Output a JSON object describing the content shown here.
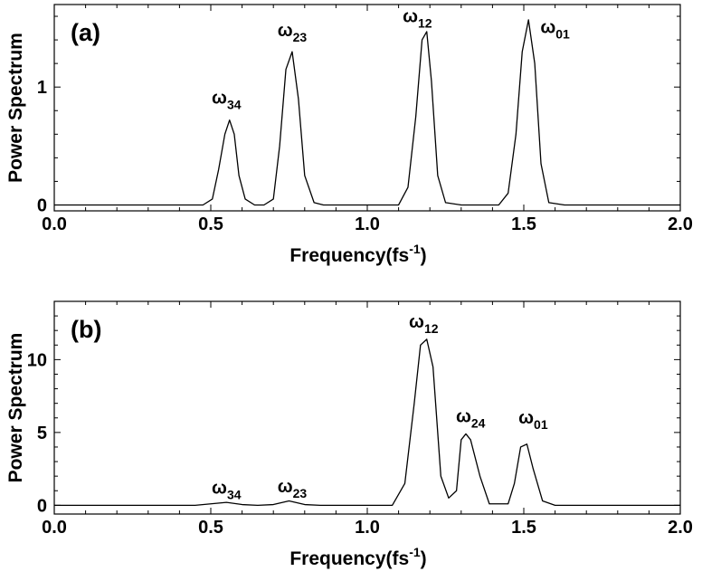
{
  "colors": {
    "line": "#000000",
    "background": "#ffffff"
  },
  "chart_data": [
    {
      "type": "line",
      "panel_label": "(a)",
      "xlabel": "Frequency(fs",
      "xlabel_sup": "-1",
      "xlabel_close": ")",
      "ylabel": "Power Spectrum",
      "xlim": [
        0.0,
        2.0
      ],
      "ylim": [
        -0.05,
        1.7
      ],
      "xticks": [
        0.0,
        0.5,
        1.0,
        1.5,
        2.0
      ],
      "xtick_labels": [
        "0.0",
        "0.5",
        "1.0",
        "1.5",
        "2.0"
      ],
      "yticks": [
        0,
        1
      ],
      "ytick_labels": [
        "0",
        "1"
      ],
      "grid": false,
      "series": [
        {
          "x": [
            0.0,
            0.475,
            0.505,
            0.525,
            0.545,
            0.56,
            0.575,
            0.59,
            0.61,
            0.64,
            0.67,
            0.7,
            0.72,
            0.74,
            0.76,
            0.78,
            0.8,
            0.83,
            0.86,
            1.1,
            1.13,
            1.155,
            1.175,
            1.19,
            1.205,
            1.225,
            1.25,
            1.3,
            1.42,
            1.45,
            1.475,
            1.495,
            1.515,
            1.535,
            1.555,
            1.58,
            1.63,
            2.0
          ],
          "y": [
            0.0,
            0.0,
            0.05,
            0.3,
            0.6,
            0.72,
            0.6,
            0.25,
            0.05,
            0.0,
            0.0,
            0.05,
            0.5,
            1.15,
            1.3,
            0.9,
            0.25,
            0.02,
            0.0,
            0.0,
            0.15,
            0.75,
            1.4,
            1.47,
            1.05,
            0.25,
            0.02,
            0.0,
            0.0,
            0.1,
            0.6,
            1.3,
            1.57,
            1.2,
            0.35,
            0.02,
            0.0,
            0.0
          ]
        }
      ],
      "annotations": [
        {
          "symbol": "ω",
          "subscript": "34",
          "x": 0.55,
          "y": 0.86
        },
        {
          "symbol": "ω",
          "subscript": "23",
          "x": 0.76,
          "y": 1.43
        },
        {
          "symbol": "ω",
          "subscript": "12",
          "x": 1.16,
          "y": 1.55
        },
        {
          "symbol": "ω",
          "subscript": "01",
          "x": 1.6,
          "y": 1.46
        }
      ]
    },
    {
      "type": "line",
      "panel_label": "(b)",
      "xlabel": "Frequency(fs",
      "xlabel_sup": "-1",
      "xlabel_close": ")",
      "ylabel": "Power Spectrum",
      "xlim": [
        0.0,
        2.0
      ],
      "ylim": [
        -0.6,
        14.0
      ],
      "xticks": [
        0.0,
        0.5,
        1.0,
        1.5,
        2.0
      ],
      "xtick_labels": [
        "0.0",
        "0.5",
        "1.0",
        "1.5",
        "2.0"
      ],
      "yticks": [
        0,
        5,
        10
      ],
      "ytick_labels": [
        "0",
        "5",
        "10"
      ],
      "grid": false,
      "series": [
        {
          "x": [
            0.0,
            0.45,
            0.5,
            0.55,
            0.6,
            0.65,
            0.7,
            0.75,
            0.8,
            0.85,
            1.08,
            1.12,
            1.15,
            1.17,
            1.19,
            1.21,
            1.235,
            1.26,
            1.285,
            1.3,
            1.315,
            1.33,
            1.36,
            1.39,
            1.45,
            1.47,
            1.49,
            1.51,
            1.53,
            1.56,
            1.6,
            2.0
          ],
          "y": [
            0.0,
            0.0,
            0.1,
            0.2,
            0.05,
            0.0,
            0.05,
            0.3,
            0.05,
            0.0,
            0.0,
            1.5,
            7.0,
            11.0,
            11.4,
            9.5,
            2.0,
            0.5,
            1.0,
            4.5,
            4.9,
            4.5,
            2.0,
            0.1,
            0.1,
            1.5,
            4.0,
            4.2,
            2.5,
            0.3,
            0.0,
            0.0
          ]
        }
      ],
      "annotations": [
        {
          "symbol": "ω",
          "subscript": "34",
          "x": 0.55,
          "y": 0.8
        },
        {
          "symbol": "ω",
          "subscript": "23",
          "x": 0.76,
          "y": 0.9
        },
        {
          "symbol": "ω",
          "subscript": "12",
          "x": 1.18,
          "y": 12.2
        },
        {
          "symbol": "ω",
          "subscript": "24",
          "x": 1.33,
          "y": 5.7
        },
        {
          "symbol": "ω",
          "subscript": "01",
          "x": 1.53,
          "y": 5.6
        }
      ]
    }
  ]
}
